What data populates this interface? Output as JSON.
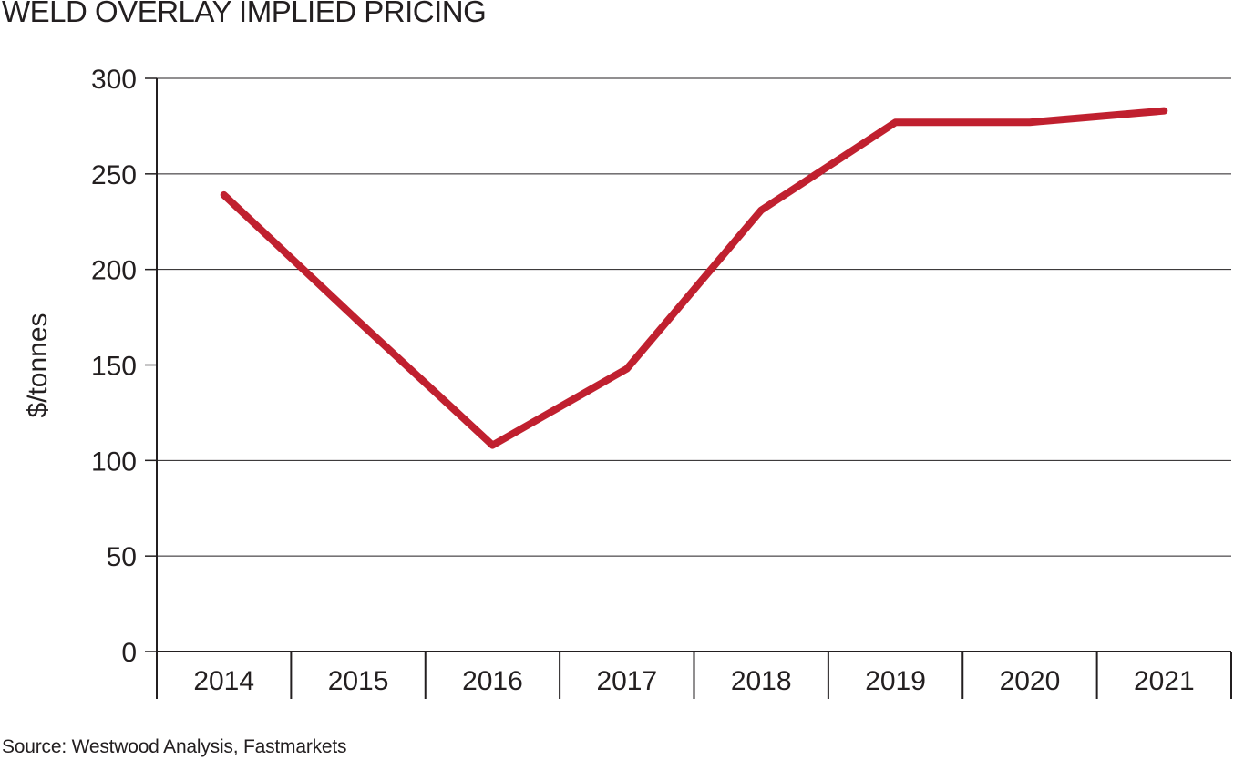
{
  "title": "WELD OVERLAY IMPLIED PRICING",
  "source": "Source: Westwood Analysis, Fastmarkets",
  "colors": {
    "line": "#c0202f",
    "grid": "#231f20",
    "text": "#231f20"
  },
  "chart_data": {
    "type": "line",
    "title": "WELD OVERLAY IMPLIED PRICING",
    "xlabel": "",
    "ylabel": "$/tonnes",
    "categories": [
      "2014",
      "2015",
      "2016",
      "2017",
      "2018",
      "2019",
      "2020",
      "2021"
    ],
    "series": [
      {
        "name": "Weld overlay implied pricing",
        "values": [
          239,
          173,
          108,
          148,
          231,
          277,
          277,
          283
        ]
      }
    ],
    "ylim": [
      0,
      300
    ],
    "yticks": [
      0,
      50,
      100,
      150,
      200,
      250,
      300
    ],
    "grid": true,
    "legend": "none"
  }
}
